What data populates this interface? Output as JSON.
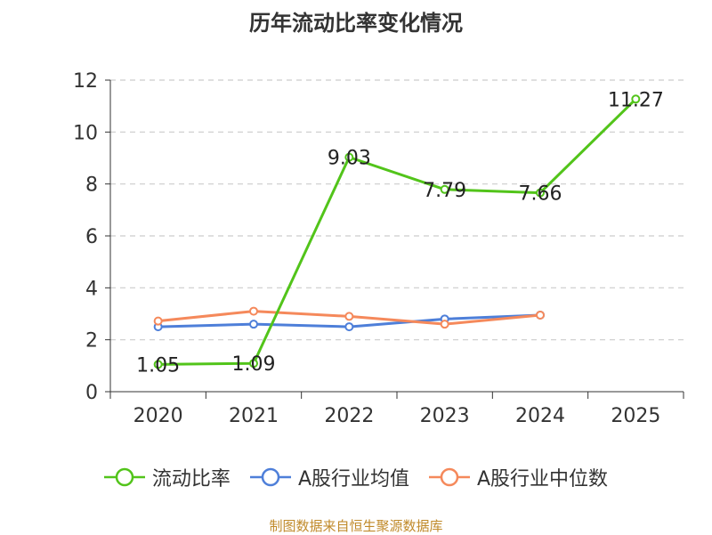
{
  "chart_data": {
    "type": "line",
    "title": "历年流动比率变化情况",
    "categories": [
      "2020",
      "2021",
      "2022",
      "2023",
      "2024",
      "2025"
    ],
    "ylim": [
      0,
      12
    ],
    "yticks": [
      "0",
      "2",
      "4",
      "6",
      "8",
      "10",
      "12"
    ],
    "grid": true,
    "legend_position": "bottom",
    "series": [
      {
        "name": "流动比率",
        "color": "#52c41a",
        "values": [
          1.05,
          1.09,
          9.03,
          7.79,
          7.66,
          11.27
        ],
        "labels": [
          "1.05",
          "1.09",
          "9.03",
          "7.79",
          "7.66",
          "11.27"
        ]
      },
      {
        "name": "A股行业均值",
        "color": "#4e7fd9",
        "values": [
          2.5,
          2.6,
          2.5,
          2.8,
          2.95,
          null
        ]
      },
      {
        "name": "A股行业中位数",
        "color": "#f5895b",
        "values": [
          2.72,
          3.1,
          2.9,
          2.6,
          2.95,
          null
        ]
      }
    ]
  },
  "footer": {
    "source": "制图数据来自恒生聚源数据库"
  }
}
